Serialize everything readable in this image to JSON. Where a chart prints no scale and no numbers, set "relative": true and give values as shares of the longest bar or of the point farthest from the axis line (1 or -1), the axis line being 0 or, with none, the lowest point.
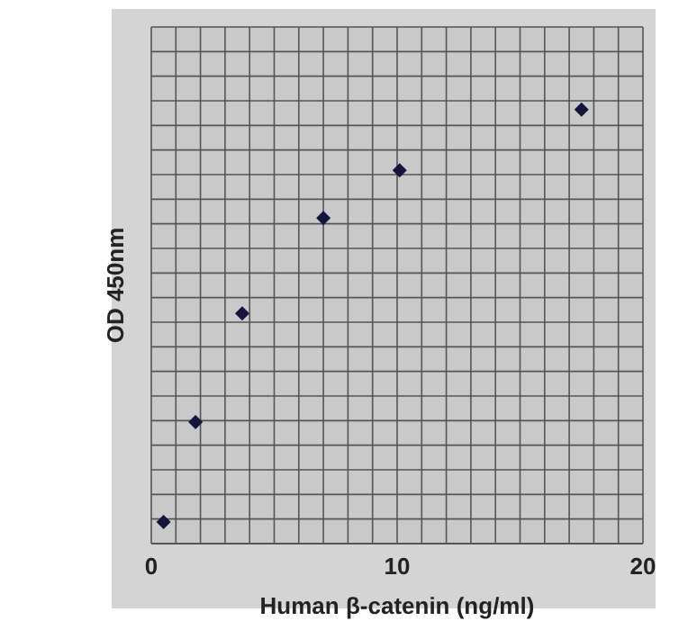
{
  "chart_data": {
    "type": "scatter",
    "xlabel": "Human β-catenin (ng/ml)",
    "ylabel": "OD 450nm",
    "relative": true,
    "xlim": [
      0,
      20
    ],
    "xticks": [
      0,
      10,
      20
    ],
    "grid": true,
    "marker": "diamond",
    "series": [
      {
        "color": "#14143c",
        "x": [
          0.5,
          1.8,
          3.7,
          7.0,
          10.1,
          17.5
        ],
        "values": [
          0.05,
          0.28,
          0.53,
          0.75,
          0.86,
          1
        ]
      }
    ]
  }
}
